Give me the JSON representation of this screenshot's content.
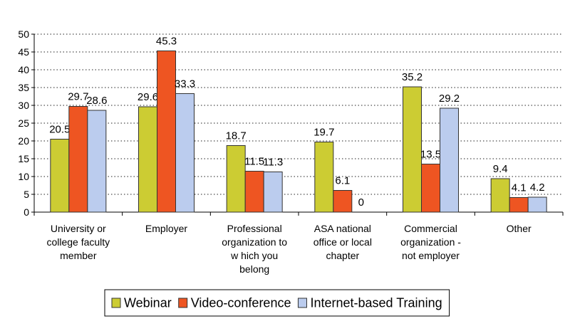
{
  "chart_data": {
    "type": "bar",
    "categories": [
      [
        "University or",
        "college faculty",
        "member"
      ],
      [
        "Employer"
      ],
      [
        "Professional",
        "organization to",
        "w hich you",
        "belong"
      ],
      [
        "ASA national",
        "office or local",
        "chapter"
      ],
      [
        "Commercial",
        "organization -",
        "not employer"
      ],
      [
        "Other"
      ]
    ],
    "series": [
      {
        "name": "Webinar",
        "color": "#CCCC33",
        "values": [
          20.5,
          29.6,
          18.7,
          19.7,
          35.2,
          9.4
        ],
        "labels": [
          "20.5",
          "29.6",
          "18.7",
          "19.7",
          "35.2",
          "9.4"
        ]
      },
      {
        "name": "Video-conference",
        "color": "#EE5522",
        "values": [
          29.7,
          45.3,
          11.5,
          6.1,
          13.5,
          4.1
        ],
        "labels": [
          "29.7",
          "45.3",
          "11.5",
          "6.1",
          "13.5",
          "4.1"
        ]
      },
      {
        "name": "Internet-based Training",
        "color": "#BBCCEE",
        "values": [
          28.6,
          33.3,
          11.3,
          0,
          29.2,
          4.2
        ],
        "labels": [
          "28.6",
          "33.3",
          "11.3",
          "0",
          "29.2",
          "4.2"
        ]
      }
    ],
    "ylim": [
      0,
      50
    ],
    "yticks": [
      0,
      5,
      10,
      15,
      20,
      25,
      30,
      35,
      40,
      45,
      50
    ],
    "grid": true,
    "legend_position": "bottom"
  }
}
